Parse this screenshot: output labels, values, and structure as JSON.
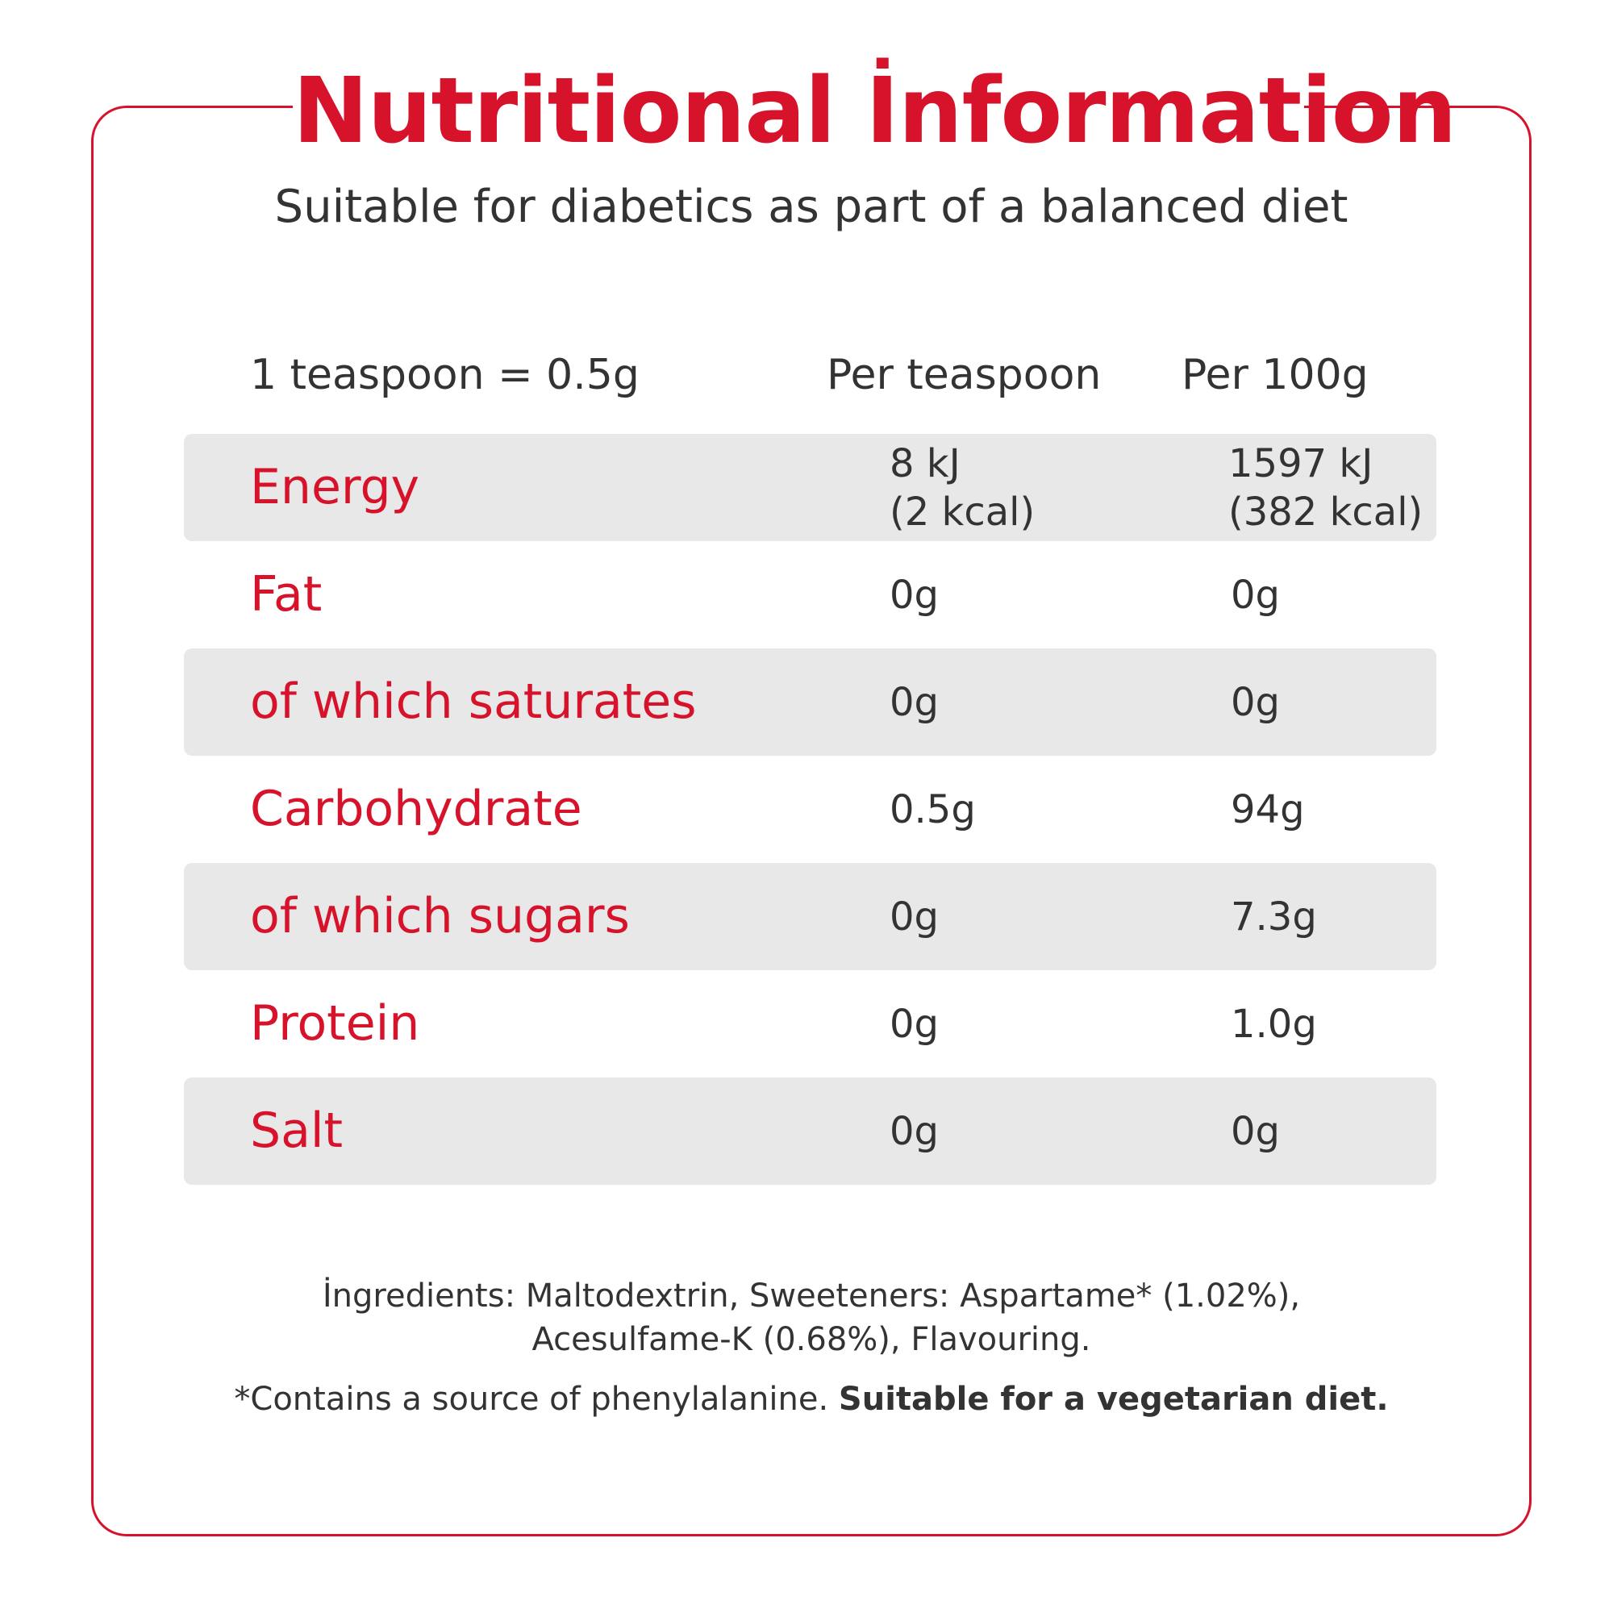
{
  "title": "Nutritional İnformation",
  "subtitle": "Suitable for diabetics as part of a balanced diet",
  "header": {
    "serving": "1 teaspoon = 0.5g",
    "per_teaspoon": "Per teaspoon",
    "per_100g": "Per 100g"
  },
  "rows": [
    {
      "label": "Energy",
      "per_teaspoon": [
        "8 kJ",
        "(2 kcal)"
      ],
      "per_100g": [
        "1597 kJ",
        "(382 kcal)"
      ]
    },
    {
      "label": "Fat",
      "per_teaspoon": "0g",
      "per_100g": "0g"
    },
    {
      "label": "of which saturates",
      "per_teaspoon": "0g",
      "per_100g": "0g"
    },
    {
      "label": "Carbohydrate",
      "per_teaspoon": "0.5g",
      "per_100g": "94g"
    },
    {
      "label": "of which sugars",
      "per_teaspoon": "0g",
      "per_100g": "7.3g"
    },
    {
      "label": "Protein",
      "per_teaspoon": "0g",
      "per_100g": "1.0g"
    },
    {
      "label": "Salt",
      "per_teaspoon": "0g",
      "per_100g": "0g"
    }
  ],
  "ingredients": {
    "line1": "İngredients: Maltodextrin, Sweeteners: Aspartame* (1.02%),",
    "line2": "Acesulfame-K (0.68%), Flavouring."
  },
  "note": {
    "text": "*Contains a source of phenylalanine. ",
    "bold": "Suitable for a vegetarian diet."
  },
  "colors": {
    "accent": "#d7132c",
    "text": "#333333",
    "row_shade": "#e8e8e8"
  }
}
